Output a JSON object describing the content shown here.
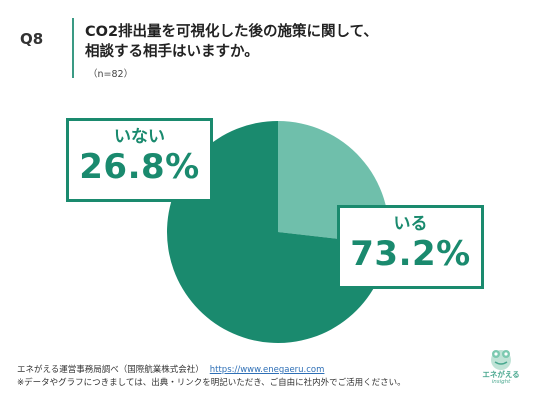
{
  "question": {
    "number": "Q8",
    "title_lines": [
      "CO2排出量を可視化した後の施策に関して、",
      "相談する相手はいますか。"
    ],
    "sample": "（n=82）"
  },
  "chart_data": {
    "type": "pie",
    "categories": [
      "いる",
      "いない"
    ],
    "values": [
      73.2,
      26.8
    ],
    "display_values": [
      "73.2%",
      "26.8%"
    ],
    "colors": [
      "#1a8a6e",
      "#6fbfab"
    ],
    "title": "",
    "start_angle": "12 o'clock",
    "direction": "clockwise",
    "order": "いない first clockwise from top, then いる"
  },
  "footer": {
    "source": "エネがえる運営事務局調べ（国際航業株式会社）",
    "url": "https://www.enegaeru.com",
    "note": "※データやグラフにつきましては、出典・リンクを明記いただき、ご自由に社内外でご活用ください。"
  },
  "logo": {
    "text": "エネがえる",
    "sub": "insight",
    "icon": "enegaeru-frog-logo-icon"
  }
}
